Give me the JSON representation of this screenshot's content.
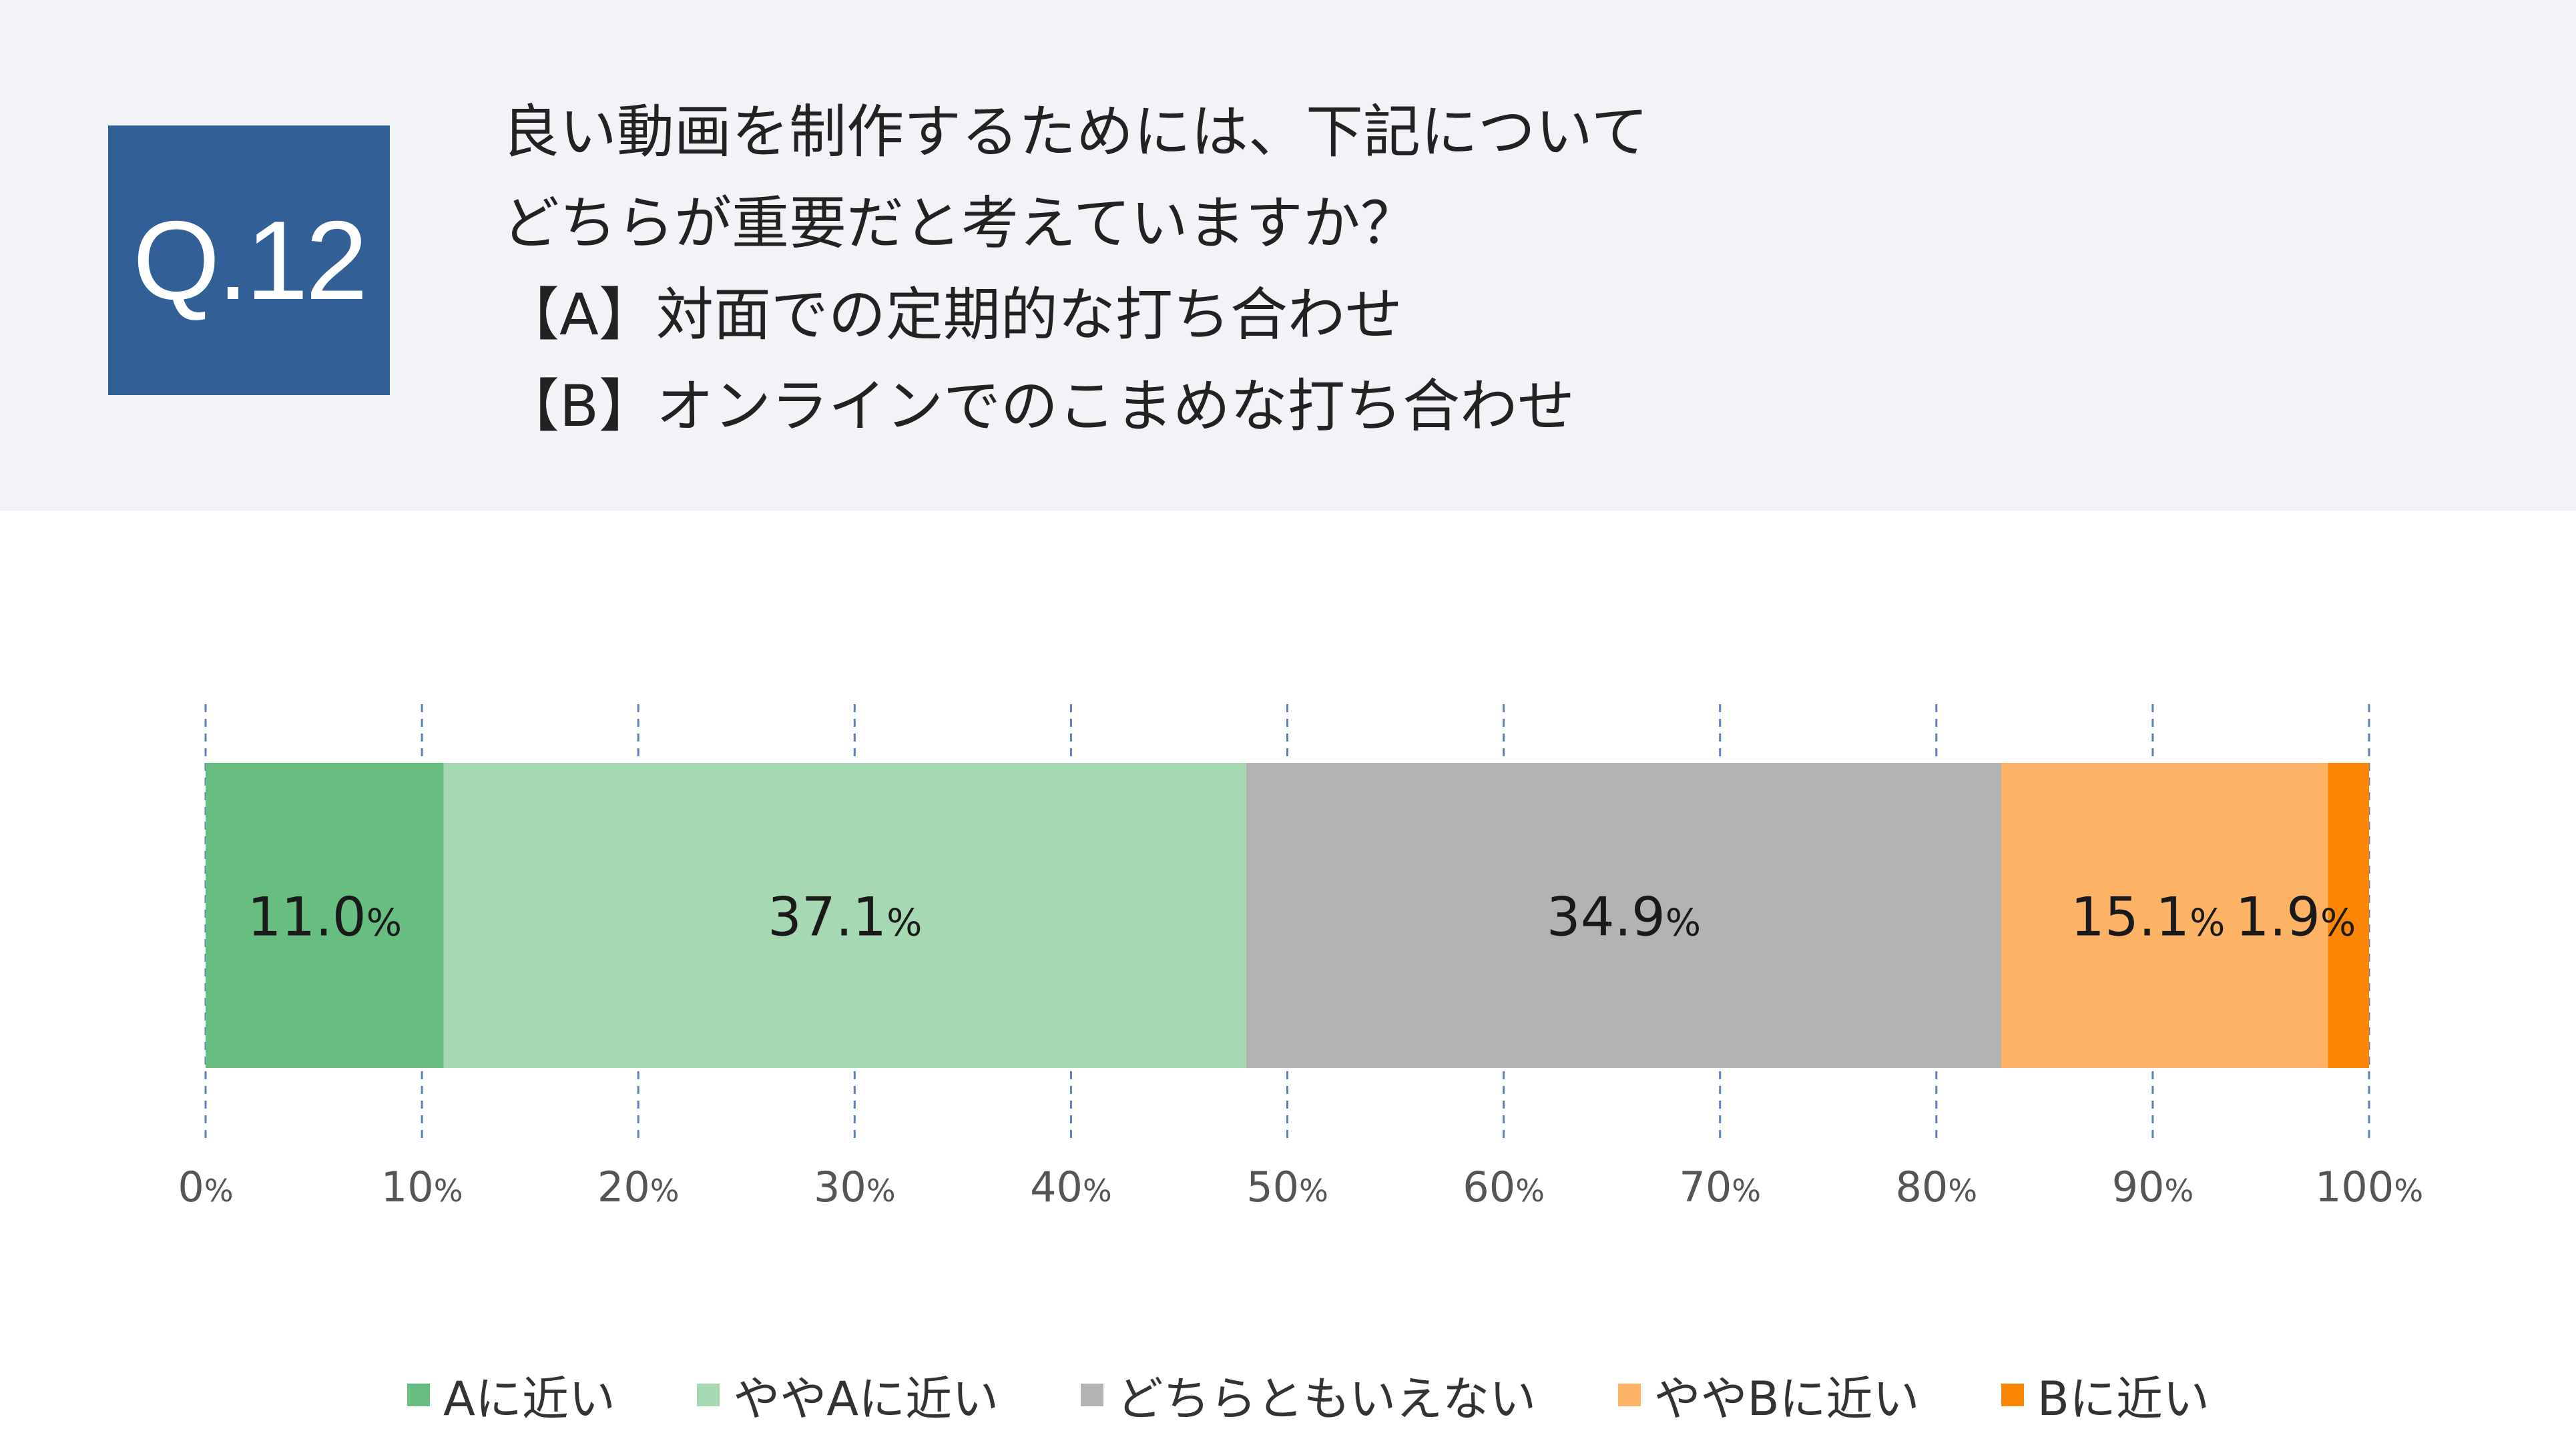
{
  "question": {
    "number": "Q.12",
    "lines": [
      "良い動画を制作するためには、下記について",
      "どちらが重要だと考えていますか？",
      "【A】対面での定期的な打ち合わせ",
      "【B】オンラインでのこまめな打ち合わせ"
    ]
  },
  "chart_data": {
    "type": "bar",
    "orientation": "horizontal-stacked-100",
    "title": "",
    "xlabel": "",
    "ylabel": "",
    "xlim": [
      0,
      100
    ],
    "grid": true,
    "legend_position": "bottom",
    "ticks": [
      {
        "value": 0,
        "num": "0",
        "unit": "%"
      },
      {
        "value": 10,
        "num": "10",
        "unit": "%"
      },
      {
        "value": 20,
        "num": "20",
        "unit": "%"
      },
      {
        "value": 30,
        "num": "30",
        "unit": "%"
      },
      {
        "value": 40,
        "num": "40",
        "unit": "%"
      },
      {
        "value": 50,
        "num": "50",
        "unit": "%"
      },
      {
        "value": 60,
        "num": "60",
        "unit": "%"
      },
      {
        "value": 70,
        "num": "70",
        "unit": "%"
      },
      {
        "value": 80,
        "num": "80",
        "unit": "%"
      },
      {
        "value": 90,
        "num": "90",
        "unit": "%"
      },
      {
        "value": 100,
        "num": "100",
        "unit": "%"
      }
    ],
    "series": [
      {
        "name": "Aに近い",
        "value": 11.0,
        "label_num": "11.0",
        "label_unit": "%",
        "color": "#68bd80"
      },
      {
        "name": "ややAに近い",
        "value": 37.1,
        "label_num": "37.1",
        "label_unit": "%",
        "color": "#a6d9b3"
      },
      {
        "name": "どちらともいえない",
        "value": 34.9,
        "label_num": "34.9",
        "label_unit": "%",
        "color": "#b3b3b3"
      },
      {
        "name": "ややBに近い",
        "value": 15.1,
        "label_num": "15.1",
        "label_unit": "%",
        "color": "#fdb365"
      },
      {
        "name": "Bに近い",
        "value": 1.9,
        "label_num": "1.9",
        "label_unit": "%",
        "color": "#fb8605"
      }
    ]
  },
  "colors": {
    "header_bg": "#f2f3f7",
    "question_box": "#315f96",
    "grid_line": "#5b7fbf",
    "axis_text": "#555555"
  }
}
